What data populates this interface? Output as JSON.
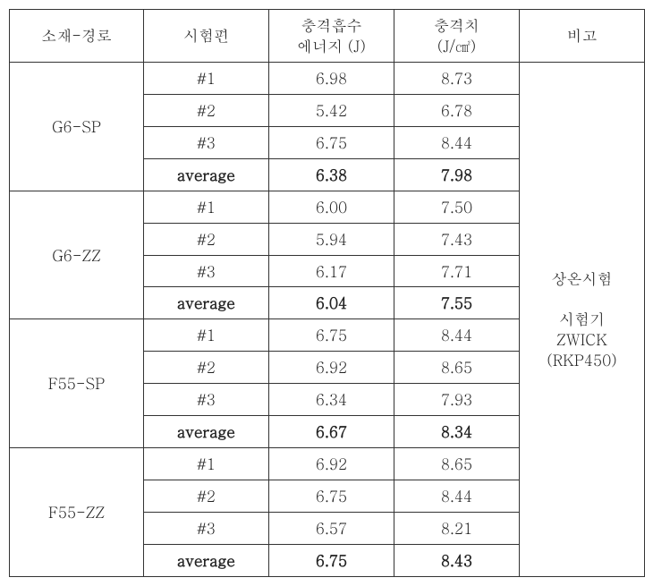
{
  "table": {
    "headers": {
      "material_path": "소재-경로",
      "specimen": "시험편",
      "impact_energy_l1": "충격흡수",
      "impact_energy_l2": "에너지 (J)",
      "impact_value_l1": "충격치",
      "impact_value_l2": "(J/㎠)",
      "remark": "비고"
    },
    "groups": [
      {
        "name": "G6-SP",
        "rows": [
          {
            "specimen": "#1",
            "energy": "6.98",
            "value": "8.73",
            "bold": false
          },
          {
            "specimen": "#2",
            "energy": "5.42",
            "value": "6.78",
            "bold": false
          },
          {
            "specimen": "#3",
            "energy": "6.75",
            "value": "8.44",
            "bold": false
          },
          {
            "specimen": "average",
            "energy": "6.38",
            "value": "7.98",
            "bold": true
          }
        ]
      },
      {
        "name": "G6-ZZ",
        "rows": [
          {
            "specimen": "#1",
            "energy": "6.00",
            "value": "7.50",
            "bold": false
          },
          {
            "specimen": "#2",
            "energy": "5.94",
            "value": "7.43",
            "bold": false
          },
          {
            "specimen": "#3",
            "energy": "6.17",
            "value": "7.71",
            "bold": false
          },
          {
            "specimen": "average",
            "energy": "6.04",
            "value": "7.55",
            "bold": true
          }
        ]
      },
      {
        "name": "F55-SP",
        "rows": [
          {
            "specimen": "#1",
            "energy": "6.75",
            "value": "8.44",
            "bold": false
          },
          {
            "specimen": "#2",
            "energy": "6.92",
            "value": "8.65",
            "bold": false
          },
          {
            "specimen": "#3",
            "energy": "6.34",
            "value": "7.93",
            "bold": false
          },
          {
            "specimen": "average",
            "energy": "6.67",
            "value": "8.34",
            "bold": true
          }
        ]
      },
      {
        "name": "F55-ZZ",
        "rows": [
          {
            "specimen": "#1",
            "energy": "6.92",
            "value": "8.65",
            "bold": false
          },
          {
            "specimen": "#2",
            "energy": "6.75",
            "value": "8.44",
            "bold": false
          },
          {
            "specimen": "#3",
            "energy": "6.57",
            "value": "8.21",
            "bold": false
          },
          {
            "specimen": "average",
            "energy": "6.75",
            "value": "8.43",
            "bold": true
          }
        ]
      }
    ],
    "remark_lines": [
      "상온시험",
      "",
      "시험기",
      "ZWICK",
      "(RKP450)"
    ],
    "style": {
      "border_color": "#333333",
      "background_color": "#ffffff",
      "text_color": "#222222",
      "font_size_pt": 17,
      "bold_rows_label": "average"
    }
  }
}
